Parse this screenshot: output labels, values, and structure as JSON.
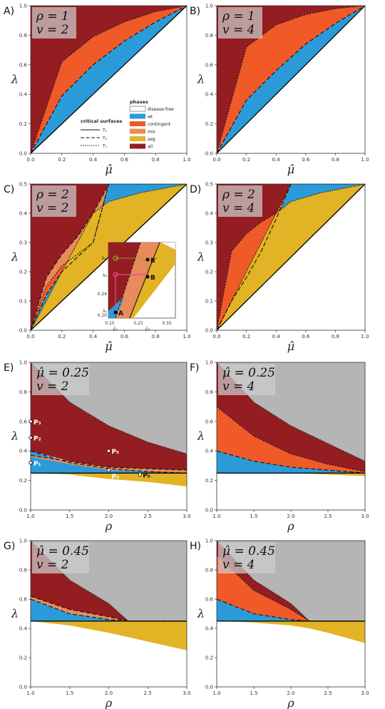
{
  "colors": {
    "disease_free": "#ffffff",
    "wt": "#2a9bd8",
    "contingent": "#f05a28",
    "mix": "#e88a5a",
    "seg": "#e2b324",
    "all": "#931d21",
    "gray": "#b5b5b5"
  },
  "legend": {
    "phases_title": "phases",
    "phases": [
      "disease-free",
      "wt",
      "contingent",
      "mix",
      "seg",
      "all"
    ],
    "surfaces_title": "critical surfaces",
    "surfaces": [
      "T₁",
      "T₂",
      "Tₓ"
    ]
  },
  "chart_data": [
    {
      "panel": "A)",
      "type": "area",
      "box": [
        "ρ = 1",
        "v = 2"
      ],
      "xlabel": "μ̂",
      "ylabel": "λ",
      "xlim": [
        0,
        1
      ],
      "ylim": [
        0,
        1
      ],
      "xticks": [
        "0.0",
        "0.2",
        "0.4",
        "0.6",
        "0.8",
        "1.0"
      ],
      "yticks": [
        "0.0",
        "0.2",
        "0.4",
        "0.6",
        "0.8",
        "1.0"
      ],
      "x": [
        0,
        0.2,
        0.4,
        0.6,
        0.8,
        1.0
      ],
      "series": [
        {
          "phase": "wt",
          "lower": [
            0,
            0.2,
            0.4,
            0.6,
            0.8,
            1.0
          ],
          "upper": [
            0,
            0.39,
            0.6,
            0.76,
            0.89,
            1.0
          ]
        },
        {
          "phase": "contingent",
          "lower": [
            0,
            0.39,
            0.6,
            0.76,
            0.89,
            1.0
          ],
          "upper": [
            0,
            0.62,
            0.79,
            0.89,
            0.96,
            1.0
          ]
        },
        {
          "phase": "all",
          "lower": [
            0,
            0.62,
            0.79,
            0.89,
            0.96,
            1.0
          ],
          "upper": [
            1,
            1,
            1,
            1,
            1,
            1
          ]
        }
      ]
    },
    {
      "panel": "B)",
      "type": "area",
      "box": [
        "ρ = 1",
        "v = 4"
      ],
      "xlabel": "μ̂",
      "ylabel": "λ",
      "xlim": [
        0,
        1
      ],
      "ylim": [
        0,
        1
      ],
      "xticks": [
        "0.0",
        "0.2",
        "0.4",
        "0.6",
        "0.8",
        "1.0"
      ],
      "yticks": [
        "0.0",
        "0.2",
        "0.4",
        "0.6",
        "0.8",
        "1.0"
      ],
      "x": [
        0,
        0.2,
        0.4,
        0.6,
        0.8,
        1.0
      ],
      "series": [
        {
          "phase": "wt",
          "lower": [
            0,
            0.2,
            0.4,
            0.6,
            0.8,
            1.0
          ],
          "upper": [
            0,
            0.36,
            0.56,
            0.74,
            0.88,
            1.0
          ]
        },
        {
          "phase": "contingent",
          "lower": [
            0,
            0.36,
            0.56,
            0.74,
            0.88,
            1.0
          ],
          "upper": [
            0,
            0.72,
            0.87,
            0.94,
            0.98,
            1.0
          ]
        },
        {
          "phase": "all",
          "lower": [
            0,
            0.72,
            0.87,
            0.94,
            0.98,
            1.0
          ],
          "upper": [
            1,
            1,
            1,
            1,
            1,
            1
          ]
        }
      ]
    },
    {
      "panel": "C)",
      "type": "area",
      "box": [
        "ρ = 2",
        "v = 2"
      ],
      "xlabel": "μ̂",
      "ylabel": "λ",
      "xlim": [
        0,
        1
      ],
      "ylim": [
        0,
        0.5
      ],
      "xticks": [
        "0.0",
        "0.2",
        "0.4",
        "0.6",
        "0.8",
        "1.0"
      ],
      "yticks": [
        "0.0",
        "0.1",
        "0.2",
        "0.3",
        "0.4",
        "0.5"
      ],
      "x": [
        0,
        0.1,
        0.2,
        0.3,
        0.4,
        0.5,
        0.7,
        1.0
      ],
      "series": [
        {
          "phase": "wt",
          "lower": [
            0,
            0.05,
            0.1,
            0.15,
            0.2,
            0.25,
            0.35,
            0.5
          ],
          "upper": [
            0,
            0.12,
            0.2,
            0.25,
            0.3,
            0.5,
            0.5,
            0.5
          ]
        },
        {
          "phase": "contingent",
          "lower": [
            0,
            0.12,
            0.2,
            0.25,
            0.3,
            0.5,
            0.5,
            0.5
          ],
          "upper": [
            0,
            0.15,
            0.22,
            0.26,
            0.3,
            0.5,
            0.5,
            0.5
          ]
        },
        {
          "phase": "mix",
          "lower": [
            0,
            0.15,
            0.22,
            0.26,
            0.3,
            0.5,
            0.5,
            0.5
          ],
          "upper": [
            0,
            0.18,
            0.26,
            0.32,
            0.4,
            0.5,
            0.5,
            0.5
          ]
        },
        {
          "phase": "seg",
          "lower": [
            0,
            0.05,
            0.1,
            0.15,
            0.2,
            0.25,
            0.35,
            0.5
          ],
          "upper": [
            0,
            0.1,
            0.2,
            0.3,
            0.4,
            0.44,
            0.47,
            0.5
          ]
        },
        {
          "phase": "all",
          "lower": [
            0,
            0.18,
            0.26,
            0.32,
            0.4,
            0.5,
            0.5,
            0.5
          ],
          "upper": [
            0.5,
            0.5,
            0.5,
            0.5,
            0.5,
            0.5,
            0.5,
            0.5
          ]
        }
      ],
      "inset": {
        "xticks": [
          "0.15",
          "0.25",
          "0.35"
        ],
        "yticks": [
          "0.20",
          "0.24"
        ],
        "points": [
          "A",
          "B",
          "B′"
        ],
        "tick_marks": [
          "μ̂ₐ",
          "μ̂ᵦ",
          "λₐ",
          "λᵦ",
          "λᵦ′"
        ]
      }
    },
    {
      "panel": "D)",
      "type": "area",
      "box": [
        "ρ = 2",
        "v = 4"
      ],
      "xlabel": "μ̂",
      "ylabel": "λ",
      "xlim": [
        0,
        1
      ],
      "ylim": [
        0,
        0.5
      ],
      "xticks": [
        "0.0",
        "0.2",
        "0.4",
        "0.6",
        "0.8",
        "1.0"
      ],
      "yticks": [
        "0.0",
        "0.1",
        "0.2",
        "0.3",
        "0.4",
        "0.5"
      ],
      "x": [
        0,
        0.1,
        0.2,
        0.3,
        0.4,
        0.5,
        0.7,
        1.0
      ],
      "series": [
        {
          "phase": "wt",
          "lower": [
            0,
            0.05,
            0.1,
            0.15,
            0.2,
            0.25,
            0.35,
            0.5
          ],
          "upper": [
            0,
            0.1,
            0.18,
            0.27,
            0.38,
            0.5,
            0.5,
            0.5
          ]
        },
        {
          "phase": "contingent",
          "lower": [
            0,
            0.1,
            0.18,
            0.27,
            0.38,
            0.5,
            0.5,
            0.5
          ],
          "upper": [
            0,
            0.27,
            0.33,
            0.37,
            0.4,
            0.5,
            0.5,
            0.5
          ]
        },
        {
          "phase": "seg",
          "lower": [
            0,
            0.05,
            0.1,
            0.15,
            0.2,
            0.25,
            0.35,
            0.5
          ],
          "upper": [
            0,
            0.1,
            0.2,
            0.3,
            0.4,
            0.44,
            0.47,
            0.5
          ]
        },
        {
          "phase": "all",
          "lower": [
            0,
            0.27,
            0.33,
            0.37,
            0.4,
            0.5,
            0.5,
            0.5
          ],
          "upper": [
            0.5,
            0.5,
            0.5,
            0.5,
            0.5,
            0.5,
            0.5,
            0.5
          ]
        }
      ]
    },
    {
      "panel": "E)",
      "type": "area",
      "box": [
        "μ̂ = 0.25",
        "v = 2"
      ],
      "xlabel": "ρ",
      "ylabel": "λ",
      "xlim": [
        1,
        3
      ],
      "ylim": [
        0,
        1
      ],
      "xticks": [
        "1.0",
        "1.5",
        "2.0",
        "2.5",
        "3.0"
      ],
      "yticks": [
        "0.0",
        "0.2",
        "0.4",
        "0.6",
        "0.8",
        "1.0"
      ],
      "x": [
        1.0,
        1.5,
        2.0,
        2.5,
        3.0
      ],
      "series": [
        {
          "phase": "wt",
          "lower": [
            0.25,
            0.25,
            0.25,
            0.25,
            0.25
          ],
          "upper": [
            0.4,
            0.32,
            0.28,
            0.26,
            0.25
          ]
        },
        {
          "phase": "mix",
          "lower": [
            0.36,
            0.31,
            0.27,
            0.26,
            0.25
          ],
          "upper": [
            0.37,
            0.33,
            0.29,
            0.28,
            0.27
          ]
        },
        {
          "phase": "seg",
          "lower": [
            0.25,
            0.24,
            0.21,
            0.19,
            0.16
          ],
          "upper": [
            0.25,
            0.25,
            0.25,
            0.25,
            0.25
          ]
        },
        {
          "phase": "all",
          "lower": [
            0.4,
            0.33,
            0.29,
            0.28,
            0.27
          ],
          "upper": [
            1.0,
            0.73,
            0.57,
            0.46,
            0.38
          ]
        },
        {
          "phase": "gray",
          "lower": [
            1.0,
            0.73,
            0.57,
            0.46,
            0.38
          ],
          "upper": [
            1,
            1,
            1,
            1,
            1
          ]
        }
      ],
      "points": [
        {
          "label": "P₁",
          "x": 1.0,
          "y": 0.32
        },
        {
          "label": "P₂",
          "x": 1.0,
          "y": 0.49
        },
        {
          "label": "P₃",
          "x": 1.0,
          "y": 0.6
        },
        {
          "label": "P₄",
          "x": 2.0,
          "y": 0.27
        },
        {
          "label": "P₅",
          "x": 2.0,
          "y": 0.4
        },
        {
          "label": "P₆",
          "x": 2.4,
          "y": 0.24
        }
      ]
    },
    {
      "panel": "F)",
      "type": "area",
      "box": [
        "μ̂ = 0.25",
        "v = 4"
      ],
      "xlabel": "ρ",
      "ylabel": "λ",
      "xlim": [
        1,
        3
      ],
      "ylim": [
        0,
        1
      ],
      "xticks": [
        "1.0",
        "1.5",
        "2.0",
        "2.5",
        "3.0"
      ],
      "yticks": [
        "0.0",
        "0.2",
        "0.4",
        "0.6",
        "0.8",
        "1.0"
      ],
      "x": [
        1.0,
        1.5,
        2.0,
        2.5,
        3.0
      ],
      "series": [
        {
          "phase": "wt",
          "lower": [
            0.25,
            0.25,
            0.25,
            0.25,
            0.25
          ],
          "upper": [
            0.4,
            0.33,
            0.29,
            0.27,
            0.25
          ]
        },
        {
          "phase": "contingent",
          "lower": [
            0.4,
            0.33,
            0.29,
            0.27,
            0.25
          ],
          "upper": [
            0.7,
            0.5,
            0.38,
            0.31,
            0.26
          ]
        },
        {
          "phase": "seg",
          "lower": [
            0.25,
            0.25,
            0.25,
            0.24,
            0.23
          ],
          "upper": [
            0.25,
            0.25,
            0.25,
            0.25,
            0.25
          ]
        },
        {
          "phase": "all",
          "lower": [
            0.7,
            0.5,
            0.38,
            0.31,
            0.26
          ],
          "upper": [
            1.0,
            0.73,
            0.57,
            0.45,
            0.33
          ]
        },
        {
          "phase": "gray",
          "lower": [
            1.0,
            0.73,
            0.57,
            0.45,
            0.33
          ],
          "upper": [
            1,
            1,
            1,
            1,
            1
          ]
        }
      ]
    },
    {
      "panel": "G)",
      "type": "area",
      "box": [
        "μ̂ = 0.45",
        "v = 2"
      ],
      "xlabel": "ρ",
      "ylabel": "λ",
      "xlim": [
        1,
        3
      ],
      "ylim": [
        0,
        1
      ],
      "xticks": [
        "1.0",
        "1.5",
        "2.0",
        "2.5",
        "3.0"
      ],
      "yticks": [
        "0.0",
        "0.2",
        "0.4",
        "0.6",
        "0.8",
        "1.0"
      ],
      "x": [
        1.0,
        1.5,
        2.0,
        2.25,
        2.5,
        3.0
      ],
      "series": [
        {
          "phase": "wt",
          "lower": [
            0.45,
            0.45,
            0.45,
            0.45,
            0.45,
            0.45
          ],
          "upper": [
            0.6,
            0.5,
            0.46,
            0.45,
            0.45,
            0.45
          ]
        },
        {
          "phase": "mix",
          "lower": [
            0.6,
            0.5,
            0.46,
            0.45,
            0.45,
            0.45
          ],
          "upper": [
            0.62,
            0.53,
            0.48,
            0.45,
            0.45,
            0.45
          ]
        },
        {
          "phase": "seg",
          "lower": [
            0.45,
            0.42,
            0.37,
            0.34,
            0.31,
            0.25
          ],
          "upper": [
            0.45,
            0.45,
            0.45,
            0.45,
            0.45,
            0.45
          ]
        },
        {
          "phase": "all",
          "lower": [
            0.62,
            0.53,
            0.48,
            0.45,
            0.45,
            0.45
          ],
          "upper": [
            1.0,
            0.73,
            0.57,
            0.45,
            0.45,
            0.45
          ]
        },
        {
          "phase": "gray",
          "lower": [
            1.0,
            0.73,
            0.57,
            0.45,
            0.45,
            0.45
          ],
          "upper": [
            1,
            1,
            1,
            1,
            1,
            1
          ]
        }
      ]
    },
    {
      "panel": "H)",
      "type": "area",
      "box": [
        "μ̂ = 0.45",
        "v = 4"
      ],
      "xlabel": "ρ",
      "ylabel": "λ",
      "xlim": [
        1,
        3
      ],
      "ylim": [
        0,
        1
      ],
      "xticks": [
        "1.0",
        "1.5",
        "2.0",
        "2.5",
        "3.0"
      ],
      "yticks": [
        "0.0",
        "0.2",
        "0.4",
        "0.6",
        "0.8",
        "1.0"
      ],
      "x": [
        1.0,
        1.5,
        2.0,
        2.25,
        2.5,
        3.0
      ],
      "series": [
        {
          "phase": "wt",
          "lower": [
            0.45,
            0.45,
            0.45,
            0.45,
            0.45,
            0.45
          ],
          "upper": [
            0.6,
            0.5,
            0.46,
            0.45,
            0.45,
            0.45
          ]
        },
        {
          "phase": "contingent",
          "lower": [
            0.6,
            0.5,
            0.46,
            0.45,
            0.45,
            0.45
          ],
          "upper": [
            0.9,
            0.66,
            0.53,
            0.45,
            0.45,
            0.45
          ]
        },
        {
          "phase": "seg",
          "lower": [
            0.45,
            0.44,
            0.42,
            0.4,
            0.37,
            0.3
          ],
          "upper": [
            0.45,
            0.45,
            0.45,
            0.45,
            0.45,
            0.45
          ]
        },
        {
          "phase": "all",
          "lower": [
            0.9,
            0.66,
            0.53,
            0.45,
            0.45,
            0.45
          ],
          "upper": [
            1.0,
            0.73,
            0.57,
            0.45,
            0.45,
            0.45
          ]
        },
        {
          "phase": "gray",
          "lower": [
            1.0,
            0.73,
            0.57,
            0.45,
            0.45,
            0.45
          ],
          "upper": [
            1,
            1,
            1,
            1,
            1,
            1
          ]
        }
      ]
    }
  ]
}
